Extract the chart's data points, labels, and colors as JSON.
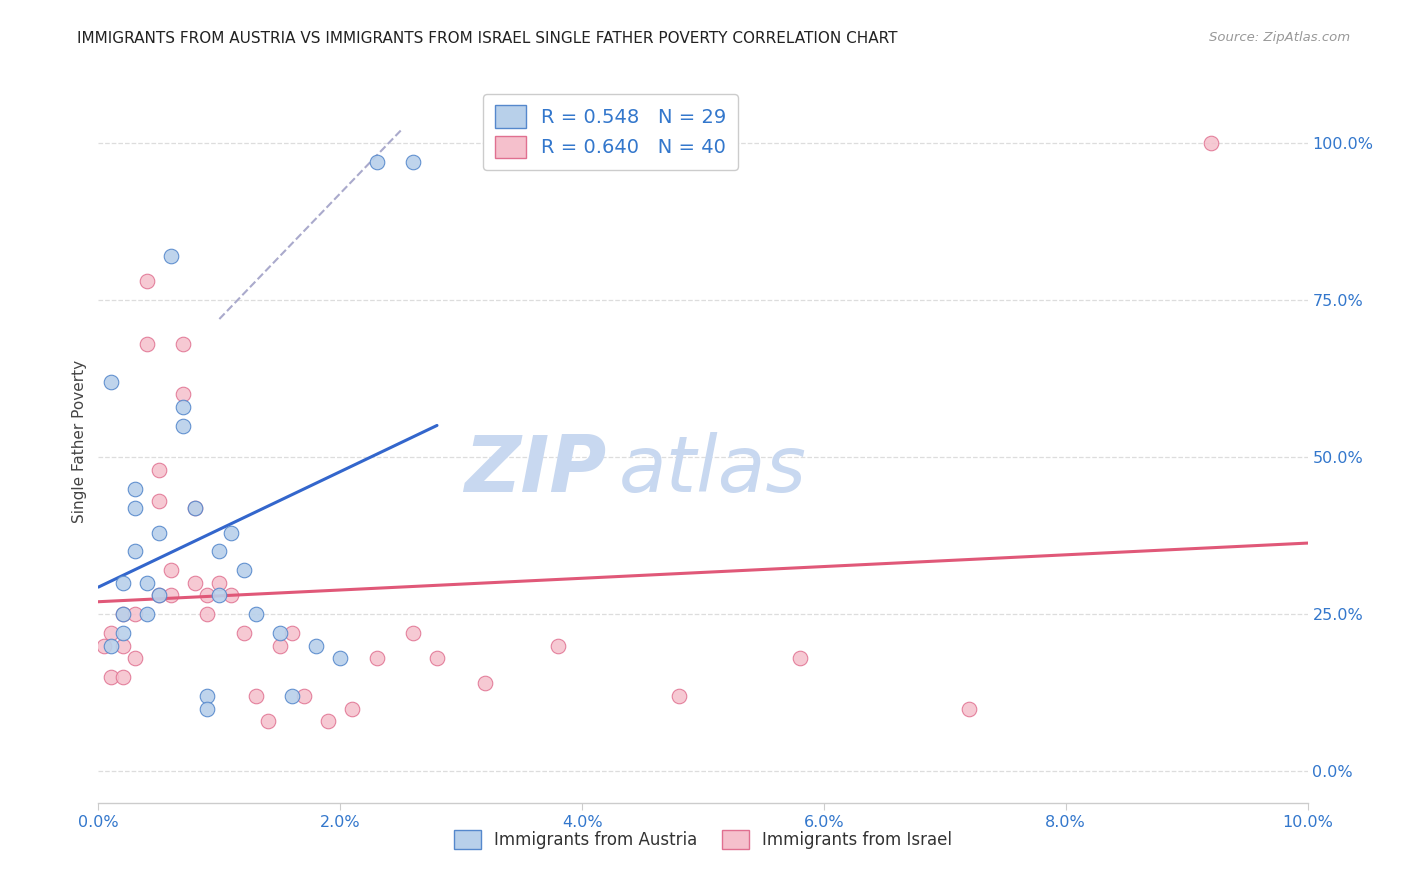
{
  "title": "IMMIGRANTS FROM AUSTRIA VS IMMIGRANTS FROM ISRAEL SINGLE FATHER POVERTY CORRELATION CHART",
  "source": "Source: ZipAtlas.com",
  "ylabel": "Single Father Poverty",
  "austria": {
    "label": "Immigrants from Austria",
    "color": "#b8d0ea",
    "edge_color": "#5588cc",
    "line_color": "#3366cc",
    "R": 0.548,
    "N": 29,
    "x": [
      0.001,
      0.001,
      0.002,
      0.002,
      0.002,
      0.003,
      0.003,
      0.003,
      0.004,
      0.004,
      0.005,
      0.005,
      0.006,
      0.007,
      0.007,
      0.008,
      0.009,
      0.009,
      0.01,
      0.01,
      0.011,
      0.012,
      0.013,
      0.015,
      0.016,
      0.018,
      0.02,
      0.023,
      0.026
    ],
    "y": [
      0.62,
      0.2,
      0.25,
      0.3,
      0.22,
      0.35,
      0.42,
      0.45,
      0.3,
      0.25,
      0.38,
      0.28,
      0.82,
      0.58,
      0.55,
      0.42,
      0.12,
      0.1,
      0.35,
      0.28,
      0.38,
      0.32,
      0.25,
      0.22,
      0.12,
      0.2,
      0.18,
      0.97,
      0.97
    ]
  },
  "israel": {
    "label": "Immigrants from Israel",
    "color": "#f5c0cc",
    "edge_color": "#e07090",
    "line_color": "#e05878",
    "R": 0.64,
    "N": 40,
    "x": [
      0.0005,
      0.001,
      0.001,
      0.002,
      0.002,
      0.002,
      0.003,
      0.003,
      0.004,
      0.004,
      0.005,
      0.005,
      0.005,
      0.006,
      0.006,
      0.007,
      0.007,
      0.008,
      0.008,
      0.009,
      0.009,
      0.01,
      0.011,
      0.012,
      0.013,
      0.014,
      0.015,
      0.016,
      0.017,
      0.019,
      0.021,
      0.023,
      0.026,
      0.028,
      0.032,
      0.038,
      0.048,
      0.058,
      0.072,
      0.092
    ],
    "y": [
      0.2,
      0.22,
      0.15,
      0.2,
      0.25,
      0.15,
      0.18,
      0.25,
      0.78,
      0.68,
      0.43,
      0.48,
      0.28,
      0.32,
      0.28,
      0.68,
      0.6,
      0.42,
      0.3,
      0.28,
      0.25,
      0.3,
      0.28,
      0.22,
      0.12,
      0.08,
      0.2,
      0.22,
      0.12,
      0.08,
      0.1,
      0.18,
      0.22,
      0.18,
      0.14,
      0.2,
      0.12,
      0.18,
      0.1,
      1.0
    ]
  },
  "xlim": [
    0.0,
    0.1
  ],
  "ylim": [
    -0.05,
    1.1
  ],
  "xticks": [
    0.0,
    0.02,
    0.04,
    0.06,
    0.08,
    0.1
  ],
  "xtick_labels": [
    "0.0%",
    "2.0%",
    "4.0%",
    "6.0%",
    "8.0%",
    "10.0%"
  ],
  "yticks_right": [
    0.0,
    0.25,
    0.5,
    0.75,
    1.0
  ],
  "ytick_labels_right": [
    "0.0%",
    "25.0%",
    "50.0%",
    "75.0%",
    "100.0%"
  ],
  "background_color": "#ffffff",
  "grid_color": "#dddddd",
  "watermark_zip": "ZIP",
  "watermark_atlas": "atlas",
  "watermark_color": "#c8d8f0"
}
